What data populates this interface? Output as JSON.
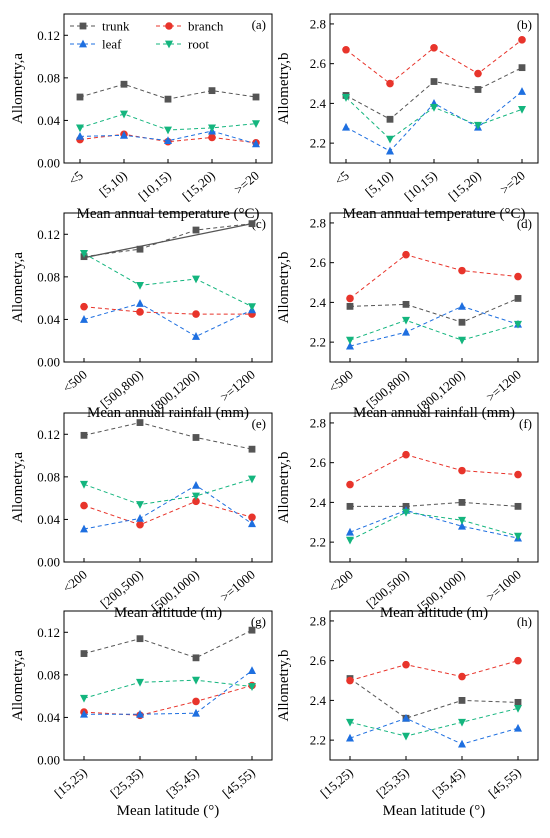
{
  "colors": {
    "trunk": "#555555",
    "branch": "#e8342b",
    "leaf": "#1e6fe0",
    "root": "#14b57e"
  },
  "legend": [
    {
      "key": "trunk",
      "label": "trunk",
      "marker": "square"
    },
    {
      "key": "branch",
      "label": "branch",
      "marker": "circle"
    },
    {
      "key": "leaf",
      "label": "leaf",
      "marker": "triangle-up"
    },
    {
      "key": "root",
      "label": "root",
      "marker": "triangle-down"
    }
  ],
  "chart_data": [
    {
      "type": "line",
      "tag": "(a)",
      "xlabel": "Mean annual temperature (°C)",
      "ylabel": "Allometry,a",
      "categories": [
        "<5",
        "[5,10)",
        "[10,15)",
        "[15,20)",
        ">=20"
      ],
      "ylim": [
        0.0,
        0.14
      ],
      "yticks": [
        "0.00",
        "0.04",
        "0.08",
        "0.12"
      ],
      "yticks_values": [
        0,
        0.04,
        0.08,
        0.12
      ],
      "legend": true,
      "grid": false,
      "series": [
        {
          "name": "trunk",
          "values": [
            0.062,
            0.074,
            0.06,
            0.068,
            0.062
          ]
        },
        {
          "name": "branch",
          "values": [
            0.022,
            0.027,
            0.02,
            0.024,
            0.019
          ]
        },
        {
          "name": "leaf",
          "values": [
            0.025,
            0.026,
            0.021,
            0.03,
            0.018
          ]
        },
        {
          "name": "root",
          "values": [
            0.033,
            0.046,
            0.031,
            0.033,
            0.037
          ]
        }
      ]
    },
    {
      "type": "line",
      "tag": "(b)",
      "xlabel": "Mean annual temperature (°C)",
      "ylabel": "Allometry,b",
      "categories": [
        "<5",
        "[5,10)",
        "[10,15)",
        "[15,20)",
        ">=20"
      ],
      "ylim": [
        2.1,
        2.85
      ],
      "yticks": [
        "2.2",
        "2.4",
        "2.6",
        "2.8"
      ],
      "yticks_values": [
        2.2,
        2.4,
        2.6,
        2.8
      ],
      "legend": false,
      "grid": false,
      "series": [
        {
          "name": "trunk",
          "values": [
            2.44,
            2.32,
            2.51,
            2.47,
            2.58
          ]
        },
        {
          "name": "branch",
          "values": [
            2.67,
            2.5,
            2.68,
            2.55,
            2.72
          ]
        },
        {
          "name": "leaf",
          "values": [
            2.28,
            2.16,
            2.4,
            2.28,
            2.46
          ]
        },
        {
          "name": "root",
          "values": [
            2.43,
            2.22,
            2.38,
            2.29,
            2.37
          ]
        }
      ]
    },
    {
      "type": "line",
      "tag": "(c)",
      "xlabel": "Mean annual rainfall (mm)",
      "ylabel": "Allometry,a",
      "categories": [
        "<500",
        "[500,800)",
        "[800,1200)",
        ">=1200"
      ],
      "ylim": [
        0.0,
        0.14
      ],
      "yticks": [
        "0.00",
        "0.04",
        "0.08",
        "0.12"
      ],
      "yticks_values": [
        0,
        0.04,
        0.08,
        0.12
      ],
      "legend": false,
      "grid": false,
      "trend": {
        "series": "trunk",
        "values": [
          0.098,
          0.13
        ]
      },
      "series": [
        {
          "name": "trunk",
          "values": [
            0.099,
            0.106,
            0.124,
            0.13
          ]
        },
        {
          "name": "branch",
          "values": [
            0.052,
            0.047,
            0.045,
            0.045
          ]
        },
        {
          "name": "leaf",
          "values": [
            0.04,
            0.055,
            0.024,
            0.049
          ]
        },
        {
          "name": "root",
          "values": [
            0.102,
            0.072,
            0.078,
            0.052
          ]
        }
      ]
    },
    {
      "type": "line",
      "tag": "(d)",
      "xlabel": "Mean annual rainfall (mm)",
      "ylabel": "Allometry,b",
      "categories": [
        "<500",
        "[500,800)",
        "[800,1200)",
        ">=1200"
      ],
      "ylim": [
        2.1,
        2.85
      ],
      "yticks": [
        "2.2",
        "2.4",
        "2.6",
        "2.8"
      ],
      "yticks_values": [
        2.2,
        2.4,
        2.6,
        2.8
      ],
      "legend": false,
      "grid": false,
      "series": [
        {
          "name": "trunk",
          "values": [
            2.38,
            2.39,
            2.3,
            2.42
          ]
        },
        {
          "name": "branch",
          "values": [
            2.42,
            2.64,
            2.56,
            2.53
          ]
        },
        {
          "name": "leaf",
          "values": [
            2.18,
            2.25,
            2.38,
            2.29
          ]
        },
        {
          "name": "root",
          "values": [
            2.21,
            2.31,
            2.21,
            2.29
          ]
        }
      ]
    },
    {
      "type": "line",
      "tag": "(e)",
      "xlabel": "Mean altitude (m)",
      "ylabel": "Allometry,a",
      "categories": [
        "<200",
        "[200,500)",
        "[500,1000)",
        ">=1000"
      ],
      "ylim": [
        0.0,
        0.14
      ],
      "yticks": [
        "0.00",
        "0.04",
        "0.08",
        "0.12"
      ],
      "yticks_values": [
        0,
        0.04,
        0.08,
        0.12
      ],
      "legend": false,
      "grid": false,
      "series": [
        {
          "name": "trunk",
          "values": [
            0.119,
            0.131,
            0.117,
            0.106
          ]
        },
        {
          "name": "branch",
          "values": [
            0.053,
            0.035,
            0.057,
            0.042
          ]
        },
        {
          "name": "leaf",
          "values": [
            0.031,
            0.041,
            0.072,
            0.036
          ]
        },
        {
          "name": "root",
          "values": [
            0.073,
            0.054,
            0.062,
            0.078
          ]
        }
      ]
    },
    {
      "type": "line",
      "tag": "(f)",
      "xlabel": "Mean altitude (m)",
      "ylabel": "Allometry,b",
      "categories": [
        "<200",
        "[200,500)",
        "[500,1000)",
        ">=1000"
      ],
      "ylim": [
        2.1,
        2.85
      ],
      "yticks": [
        "2.2",
        "2.4",
        "2.6",
        "2.8"
      ],
      "yticks_values": [
        2.2,
        2.4,
        2.6,
        2.8
      ],
      "legend": false,
      "grid": false,
      "series": [
        {
          "name": "trunk",
          "values": [
            2.38,
            2.38,
            2.4,
            2.38
          ]
        },
        {
          "name": "branch",
          "values": [
            2.49,
            2.64,
            2.56,
            2.54
          ]
        },
        {
          "name": "leaf",
          "values": [
            2.25,
            2.36,
            2.28,
            2.22
          ]
        },
        {
          "name": "root",
          "values": [
            2.21,
            2.35,
            2.31,
            2.23
          ]
        }
      ]
    },
    {
      "type": "line",
      "tag": "(g)",
      "xlabel": "Mean latitude (°)",
      "ylabel": "Allometry,a",
      "categories": [
        "[15,25)",
        "[25,35)",
        "[35,45)",
        "[45,55)"
      ],
      "ylim": [
        0.0,
        0.14
      ],
      "yticks": [
        "0.00",
        "0.04",
        "0.08",
        "0.12"
      ],
      "yticks_values": [
        0,
        0.04,
        0.08,
        0.12
      ],
      "legend": false,
      "grid": false,
      "series": [
        {
          "name": "trunk",
          "values": [
            0.1,
            0.114,
            0.096,
            0.122
          ]
        },
        {
          "name": "branch",
          "values": [
            0.045,
            0.042,
            0.055,
            0.07
          ]
        },
        {
          "name": "leaf",
          "values": [
            0.043,
            0.043,
            0.044,
            0.084
          ]
        },
        {
          "name": "root",
          "values": [
            0.058,
            0.073,
            0.075,
            0.069
          ]
        }
      ]
    },
    {
      "type": "line",
      "tag": "(h)",
      "xlabel": "Mean latitude (°)",
      "ylabel": "Allometry,b",
      "categories": [
        "[15,25)",
        "[25,35)",
        "[35,45)",
        "[45,55)"
      ],
      "ylim": [
        2.1,
        2.85
      ],
      "yticks": [
        "2.2",
        "2.4",
        "2.6",
        "2.8"
      ],
      "yticks_values": [
        2.2,
        2.4,
        2.6,
        2.8
      ],
      "legend": false,
      "grid": false,
      "series": [
        {
          "name": "trunk",
          "values": [
            2.51,
            2.31,
            2.4,
            2.39
          ]
        },
        {
          "name": "branch",
          "values": [
            2.5,
            2.58,
            2.52,
            2.6
          ]
        },
        {
          "name": "leaf",
          "values": [
            2.21,
            2.31,
            2.18,
            2.26
          ]
        },
        {
          "name": "root",
          "values": [
            2.29,
            2.22,
            2.29,
            2.36
          ]
        }
      ]
    }
  ]
}
